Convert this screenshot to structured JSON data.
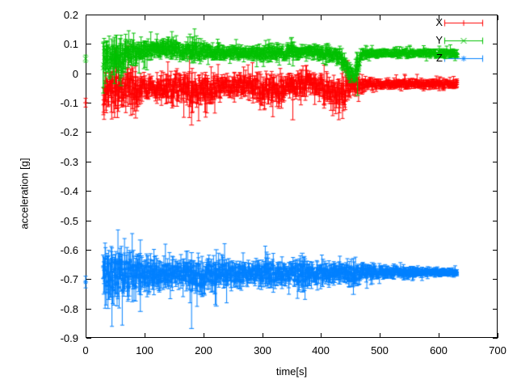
{
  "chart_data": {
    "type": "scatter",
    "subtype": "errorbars",
    "title": "",
    "xlabel": "time[s]",
    "ylabel": "acceleration [g]",
    "xlim": [
      0,
      700
    ],
    "ylim": [
      -0.9,
      0.2
    ],
    "grid": false,
    "background": "#ffffff",
    "axis_color": "#000000",
    "xticks": {
      "values": [
        0,
        100,
        200,
        300,
        400,
        500,
        600,
        700
      ],
      "labels": [
        "0",
        "100",
        "200",
        "300",
        "400",
        "500",
        "600",
        "700"
      ]
    },
    "yticks": {
      "values": [
        0.2,
        0.1,
        0,
        -0.1,
        -0.2,
        -0.3,
        -0.4,
        -0.5,
        -0.6,
        -0.7,
        -0.8,
        -0.9
      ],
      "labels": [
        "0.2",
        "0.1",
        "0",
        "-0.1",
        "-0.2",
        "-0.3",
        "-0.4",
        "-0.5",
        "-0.6",
        "-0.7",
        "-0.8",
        "-0.9"
      ]
    },
    "legend": {
      "position": "top-right",
      "boxed": false
    },
    "data_t_range": [
      30,
      632
    ],
    "series": [
      {
        "name": "X",
        "color": "#ff0000",
        "marker": "plus",
        "start_point": {
          "t": 0,
          "value": -0.1,
          "err": 0.015
        },
        "envelope_t_center_spread": [
          [
            30,
            -0.065,
            0.068
          ],
          [
            38,
            -0.05,
            0.062
          ],
          [
            48,
            -0.058,
            0.068
          ],
          [
            58,
            -0.05,
            0.052
          ],
          [
            68,
            -0.046,
            0.055
          ],
          [
            80,
            -0.058,
            0.068
          ],
          [
            90,
            -0.05,
            0.05
          ],
          [
            100,
            -0.046,
            0.036
          ],
          [
            112,
            -0.052,
            0.03
          ],
          [
            124,
            -0.054,
            0.032
          ],
          [
            136,
            -0.05,
            0.04
          ],
          [
            148,
            -0.046,
            0.05
          ],
          [
            160,
            -0.05,
            0.042
          ],
          [
            172,
            -0.056,
            0.046
          ],
          [
            182,
            -0.06,
            0.052
          ],
          [
            192,
            -0.055,
            0.045
          ],
          [
            202,
            -0.058,
            0.05
          ],
          [
            212,
            -0.06,
            0.048
          ],
          [
            222,
            -0.045,
            0.036
          ],
          [
            234,
            -0.04,
            0.03
          ],
          [
            246,
            -0.044,
            0.032
          ],
          [
            258,
            -0.042,
            0.032
          ],
          [
            270,
            -0.04,
            0.03
          ],
          [
            282,
            -0.046,
            0.04
          ],
          [
            294,
            -0.052,
            0.046
          ],
          [
            304,
            -0.064,
            0.05
          ],
          [
            314,
            -0.052,
            0.044
          ],
          [
            324,
            -0.062,
            0.048
          ],
          [
            334,
            -0.052,
            0.042
          ],
          [
            344,
            -0.04,
            0.032
          ],
          [
            356,
            -0.044,
            0.036
          ],
          [
            368,
            -0.032,
            0.034
          ],
          [
            380,
            -0.03,
            0.03
          ],
          [
            392,
            -0.04,
            0.034
          ],
          [
            404,
            -0.052,
            0.042
          ],
          [
            416,
            -0.07,
            0.05
          ],
          [
            428,
            -0.074,
            0.052
          ],
          [
            438,
            -0.064,
            0.054
          ],
          [
            448,
            -0.05,
            0.04
          ],
          [
            460,
            -0.04,
            0.026
          ],
          [
            475,
            -0.038,
            0.018
          ],
          [
            500,
            -0.037,
            0.015
          ],
          [
            560,
            -0.036,
            0.014
          ],
          [
            632,
            -0.037,
            0.013
          ]
        ],
        "outlier_errorbars_t_lo_hi": [
          [
            85,
            -0.152,
            -0.012
          ],
          [
            180,
            -0.176,
            -0.028
          ],
          [
            352,
            -0.158,
            -0.022
          ]
        ]
      },
      {
        "name": "Y",
        "color": "#00c000",
        "marker": "cross",
        "start_point": {
          "t": 0,
          "value": 0.05,
          "err": 0.012
        },
        "envelope_t_center_spread": [
          [
            30,
            0.04,
            0.062
          ],
          [
            40,
            0.05,
            0.055
          ],
          [
            52,
            0.052,
            0.055
          ],
          [
            62,
            0.052,
            0.06
          ],
          [
            72,
            0.066,
            0.04
          ],
          [
            84,
            0.072,
            0.036
          ],
          [
            96,
            0.078,
            0.032
          ],
          [
            108,
            0.078,
            0.028
          ],
          [
            120,
            0.08,
            0.026
          ],
          [
            132,
            0.086,
            0.028
          ],
          [
            144,
            0.084,
            0.03
          ],
          [
            156,
            0.078,
            0.026
          ],
          [
            168,
            0.076,
            0.026
          ],
          [
            180,
            0.084,
            0.036
          ],
          [
            192,
            0.08,
            0.03
          ],
          [
            204,
            0.074,
            0.026
          ],
          [
            216,
            0.07,
            0.022
          ],
          [
            228,
            0.074,
            0.024
          ],
          [
            240,
            0.07,
            0.02
          ],
          [
            252,
            0.07,
            0.02
          ],
          [
            264,
            0.07,
            0.02
          ],
          [
            276,
            0.066,
            0.02
          ],
          [
            288,
            0.07,
            0.02
          ],
          [
            300,
            0.066,
            0.02
          ],
          [
            312,
            0.07,
            0.022
          ],
          [
            324,
            0.07,
            0.024
          ],
          [
            336,
            0.07,
            0.02
          ],
          [
            348,
            0.076,
            0.026
          ],
          [
            360,
            0.07,
            0.02
          ],
          [
            372,
            0.07,
            0.02
          ],
          [
            384,
            0.074,
            0.02
          ],
          [
            396,
            0.07,
            0.02
          ],
          [
            408,
            0.066,
            0.02
          ],
          [
            420,
            0.064,
            0.022
          ],
          [
            430,
            0.06,
            0.026
          ],
          [
            438,
            0.045,
            0.035
          ],
          [
            448,
            0.005,
            0.028
          ],
          [
            456,
            -0.012,
            0.018
          ],
          [
            462,
            0.028,
            0.045
          ],
          [
            468,
            0.064,
            0.016
          ],
          [
            480,
            0.068,
            0.013
          ],
          [
            560,
            0.069,
            0.012
          ],
          [
            632,
            0.068,
            0.012
          ]
        ],
        "outlier_errorbars_t_lo_hi": [
          [
            60,
            -0.042,
            0.055
          ],
          [
            182,
            0.05,
            0.124
          ],
          [
            350,
            0.058,
            0.122
          ],
          [
            462,
            -0.075,
            0.068
          ]
        ]
      },
      {
        "name": "Z",
        "color": "#0080ff",
        "marker": "asterisk",
        "start_point": {
          "t": 0,
          "value": -0.71,
          "err": 0.02
        },
        "envelope_t_center_spread": [
          [
            30,
            -0.69,
            0.088
          ],
          [
            40,
            -0.688,
            0.08
          ],
          [
            52,
            -0.686,
            0.075
          ],
          [
            64,
            -0.688,
            0.07
          ],
          [
            76,
            -0.685,
            0.068
          ],
          [
            88,
            -0.685,
            0.07
          ],
          [
            100,
            -0.682,
            0.055
          ],
          [
            112,
            -0.684,
            0.05
          ],
          [
            124,
            -0.684,
            0.046
          ],
          [
            136,
            -0.683,
            0.042
          ],
          [
            148,
            -0.684,
            0.036
          ],
          [
            160,
            -0.681,
            0.035
          ],
          [
            172,
            -0.683,
            0.04
          ],
          [
            184,
            -0.683,
            0.048
          ],
          [
            196,
            -0.684,
            0.055
          ],
          [
            208,
            -0.681,
            0.05
          ],
          [
            220,
            -0.683,
            0.05
          ],
          [
            232,
            -0.681,
            0.045
          ],
          [
            244,
            -0.684,
            0.044
          ],
          [
            256,
            -0.683,
            0.04
          ],
          [
            268,
            -0.682,
            0.036
          ],
          [
            280,
            -0.683,
            0.032
          ],
          [
            292,
            -0.681,
            0.035
          ],
          [
            304,
            -0.683,
            0.04
          ],
          [
            316,
            -0.681,
            0.044
          ],
          [
            328,
            -0.681,
            0.032
          ],
          [
            340,
            -0.683,
            0.03
          ],
          [
            352,
            -0.681,
            0.034
          ],
          [
            364,
            -0.68,
            0.045
          ],
          [
            376,
            -0.681,
            0.04
          ],
          [
            388,
            -0.68,
            0.032
          ],
          [
            400,
            -0.68,
            0.03
          ],
          [
            412,
            -0.681,
            0.034
          ],
          [
            424,
            -0.68,
            0.03
          ],
          [
            436,
            -0.68,
            0.03
          ],
          [
            448,
            -0.68,
            0.04
          ],
          [
            460,
            -0.68,
            0.03
          ],
          [
            472,
            -0.679,
            0.025
          ],
          [
            484,
            -0.678,
            0.022
          ],
          [
            496,
            -0.678,
            0.02
          ],
          [
            510,
            -0.677,
            0.018
          ],
          [
            530,
            -0.677,
            0.016
          ],
          [
            560,
            -0.677,
            0.014
          ],
          [
            590,
            -0.677,
            0.012
          ],
          [
            632,
            -0.678,
            0.011
          ]
        ],
        "outlier_errorbars_t_lo_hi": [
          [
            38,
            -0.8,
            -0.62
          ],
          [
            93,
            -0.81,
            -0.567
          ],
          [
            180,
            -0.868,
            -0.61
          ],
          [
            222,
            -0.792,
            -0.6
          ],
          [
            310,
            -0.73,
            -0.615
          ],
          [
            368,
            -0.744,
            -0.612
          ],
          [
            455,
            -0.752,
            -0.63
          ],
          [
            487,
            -0.716,
            -0.644
          ]
        ]
      }
    ]
  }
}
